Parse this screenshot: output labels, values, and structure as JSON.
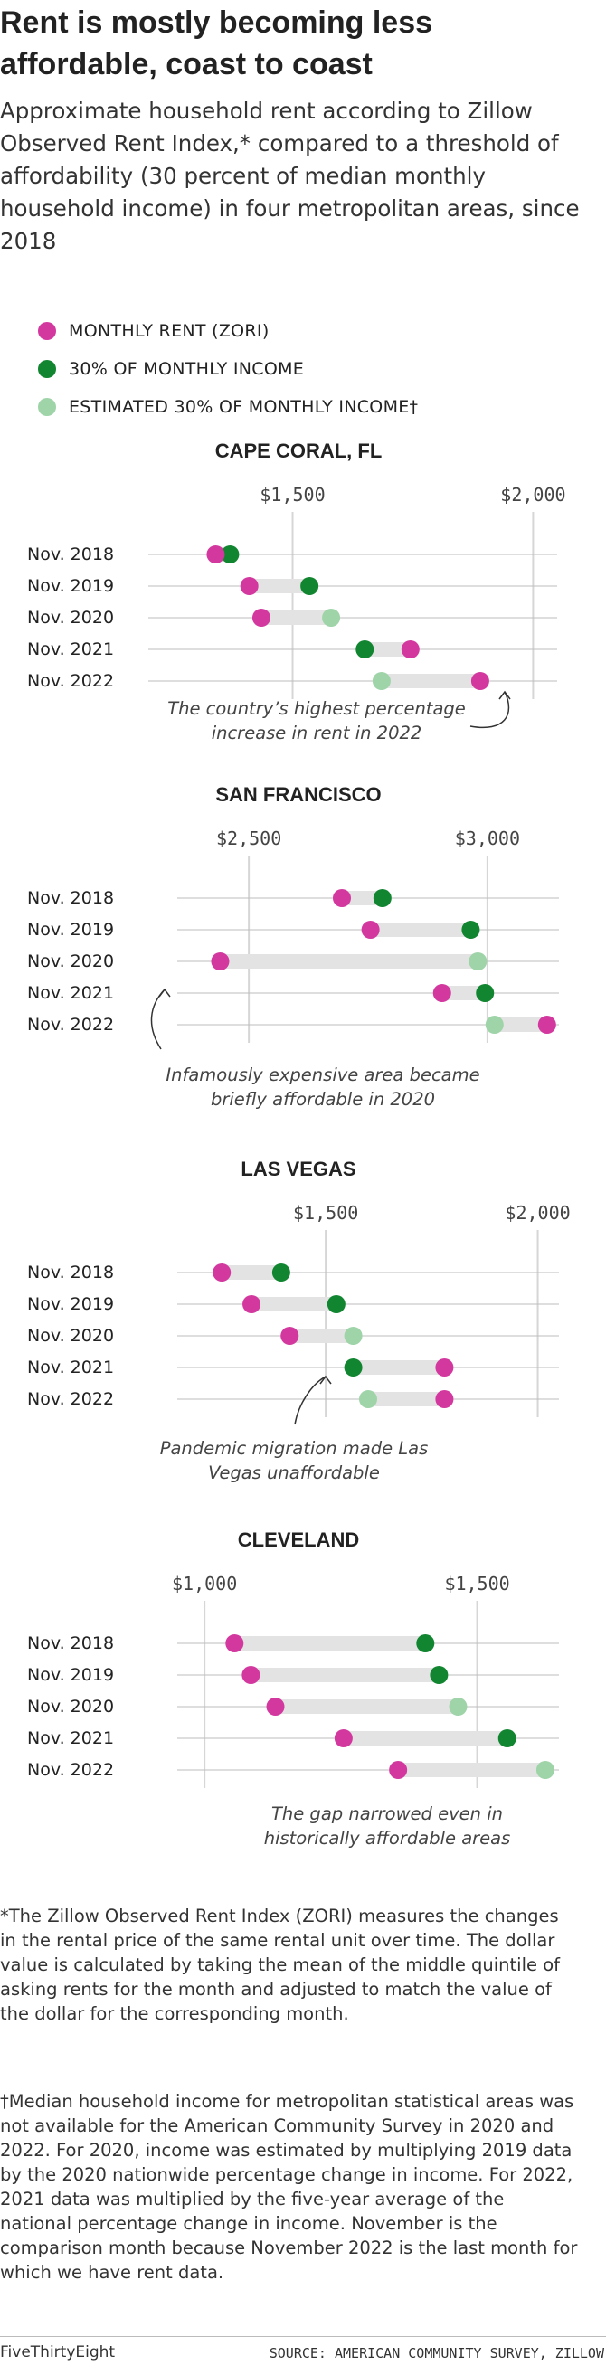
{
  "header": {
    "title": "Rent is mostly becoming less affordable, coast to coast",
    "subtitle": "Approximate household rent according to Zillow Observed Rent Index,* compared to a threshold of affordability (30 percent of median monthly household income) in four metropolitan areas, since 2018"
  },
  "legend": [
    {
      "label": "MONTHLY RENT (ZORI)",
      "color": "#d3389f"
    },
    {
      "label": "30% OF MONTHLY INCOME",
      "color": "#128531"
    },
    {
      "label": "ESTIMATED 30% OF MONTHLY INCOME†",
      "color": "#9ed4a8"
    }
  ],
  "colors": {
    "rent": "#d3389f",
    "income": "#128531",
    "estimated": "#9ed4a8",
    "bar": "#e3e3e3",
    "grid": "#d6d6d6"
  },
  "chart_data": [
    {
      "type": "dumbbell",
      "title": "CAPE CORAL, FL",
      "xlim": [
        1200,
        2050
      ],
      "ticks": [
        1500,
        2000
      ],
      "tick_labels": [
        "$1,500",
        "$2,000"
      ],
      "categories": [
        "Nov. 2018",
        "Nov. 2019",
        "Nov. 2020",
        "Nov. 2021",
        "Nov. 2022"
      ],
      "series": [
        {
          "name": "MONTHLY RENT (ZORI)",
          "values": [
            1340,
            1410,
            1435,
            1745,
            1890
          ]
        },
        {
          "name": "30% OF MONTHLY INCOME",
          "values": [
            1370,
            1535,
            1580,
            1650,
            1685
          ]
        }
      ],
      "estimated": [
        false,
        false,
        true,
        false,
        true
      ],
      "annotation": "The country’s highest percentage increase in rent in 2022"
    },
    {
      "type": "dumbbell",
      "title": "SAN FRANCISCO",
      "xlim": [
        2350,
        3150
      ],
      "ticks": [
        2500,
        3000
      ],
      "tick_labels": [
        "$2,500",
        "$3,000"
      ],
      "categories": [
        "Nov. 2018",
        "Nov. 2019",
        "Nov. 2020",
        "Nov. 2021",
        "Nov. 2022"
      ],
      "series": [
        {
          "name": "MONTHLY RENT (ZORI)",
          "values": [
            2695,
            2755,
            2440,
            2905,
            3125
          ]
        },
        {
          "name": "30% OF MONTHLY INCOME",
          "values": [
            2780,
            2965,
            2980,
            2995,
            3015
          ]
        }
      ],
      "estimated": [
        false,
        false,
        true,
        false,
        true
      ],
      "annotation": "Infamously expensive area became briefly affordable in 2020"
    },
    {
      "type": "dumbbell",
      "title": "LAS VEGAS",
      "xlim": [
        1150,
        2050
      ],
      "ticks": [
        1500,
        2000
      ],
      "tick_labels": [
        "$1,500",
        "$2,000"
      ],
      "categories": [
        "Nov. 2018",
        "Nov. 2019",
        "Nov. 2020",
        "Nov. 2021",
        "Nov. 2022"
      ],
      "series": [
        {
          "name": "MONTHLY RENT (ZORI)",
          "values": [
            1255,
            1325,
            1415,
            1780,
            1780
          ]
        },
        {
          "name": "30% OF MONTHLY INCOME",
          "values": [
            1395,
            1525,
            1565,
            1565,
            1600
          ]
        }
      ],
      "estimated": [
        false,
        false,
        true,
        false,
        true
      ],
      "annotation": "Pandemic migration made Las Vegas unaffordable"
    },
    {
      "type": "dumbbell",
      "title": "CLEVELAND",
      "xlim": [
        950,
        1650
      ],
      "ticks": [
        1000,
        1500
      ],
      "tick_labels": [
        "$1,000",
        "$1,500"
      ],
      "categories": [
        "Nov. 2018",
        "Nov. 2019",
        "Nov. 2020",
        "Nov. 2021",
        "Nov. 2022"
      ],
      "series": [
        {
          "name": "MONTHLY RENT (ZORI)",
          "values": [
            1055,
            1085,
            1130,
            1255,
            1355
          ]
        },
        {
          "name": "30% OF MONTHLY INCOME",
          "values": [
            1405,
            1430,
            1465,
            1555,
            1625
          ]
        }
      ],
      "estimated": [
        false,
        false,
        true,
        false,
        true
      ],
      "annotation": "The gap narrowed even in historically affordable areas"
    }
  ],
  "footnotes": {
    "zori": "*The Zillow Observed Rent Index (ZORI) measures the changes in the rental price of the same rental unit over time. The dollar value is calculated by taking the mean of the middle quintile of asking rents for the month and adjusted to match the value of the dollar for the corresponding month.",
    "income": "†Median household income for metropolitan statistical areas was not available for the American Community Survey in 2020 and 2022. For 2020, income was estimated by multiplying 2019 data by the 2020 nationwide percentage change in income. For 2022, 2021 data was multiplied by the five-year average of the national percentage change in income. November is the comparison month because November 2022 is the last month for which we have rent data."
  },
  "footer": {
    "brand": "FiveThirtyEight",
    "source": "SOURCE: AMERICAN COMMUNITY SURVEY, ZILLOW"
  }
}
